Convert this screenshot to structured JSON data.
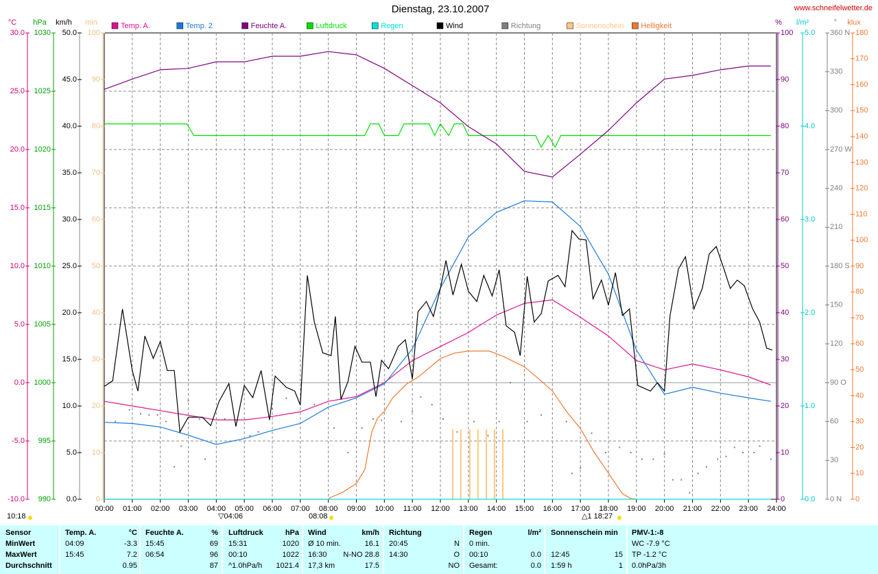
{
  "chart_data": {
    "type": "line",
    "title": "Dienstag, 23.10.2007",
    "source": "www.schneifelwetter.de",
    "grid": true,
    "xlim": [
      0,
      24
    ],
    "xticks": [
      {
        "value": 0,
        "label": "00:00"
      },
      {
        "value": 1,
        "label": "01:00"
      },
      {
        "value": 2,
        "label": "02:00"
      },
      {
        "value": 3,
        "label": "03:00"
      },
      {
        "value": 4,
        "label": "04:00"
      },
      {
        "value": 5,
        "label": "05:00"
      },
      {
        "value": 6,
        "label": "06:00"
      },
      {
        "value": 7,
        "label": "07:00"
      },
      {
        "value": 8,
        "label": "08:00"
      },
      {
        "value": 9,
        "label": "09:00"
      },
      {
        "value": 10,
        "label": "10:00"
      },
      {
        "value": 11,
        "label": "11:00"
      },
      {
        "value": 12,
        "label": "12:00"
      },
      {
        "value": 13,
        "label": "13:00"
      },
      {
        "value": 14,
        "label": "14:00"
      },
      {
        "value": 15,
        "label": "15:00"
      },
      {
        "value": 16,
        "label": "16:00"
      },
      {
        "value": 17,
        "label": "17:00"
      },
      {
        "value": 18,
        "label": "18:00"
      },
      {
        "value": 19,
        "label": "19:00"
      },
      {
        "value": 20,
        "label": "20:00"
      },
      {
        "value": 21,
        "label": "21:00"
      },
      {
        "value": 22,
        "label": "22:00"
      },
      {
        "value": 23,
        "label": "23:00"
      },
      {
        "value": 24,
        "label": "24:00"
      }
    ],
    "axes": [
      {
        "unit": "°C",
        "color": "#d0007a",
        "lim": [
          -10,
          30
        ],
        "ticks": [
          {
            "value": 30,
            "label": "30.0"
          },
          {
            "value": 25,
            "label": "25.0"
          },
          {
            "value": 20,
            "label": "20.0"
          },
          {
            "value": 15,
            "label": "15.0"
          },
          {
            "value": 10,
            "label": "10.0"
          },
          {
            "value": 5,
            "label": "5.0"
          },
          {
            "value": 0,
            "label": "0.0"
          },
          {
            "value": -5,
            "label": "-5.0"
          },
          {
            "value": -10,
            "label": "-10.0"
          }
        ]
      },
      {
        "unit": "hPa",
        "color": "#00a000",
        "lim": [
          990,
          1030
        ],
        "ticks": [
          1030,
          1025,
          1020,
          1015,
          1010,
          1005,
          1000,
          995,
          990
        ]
      },
      {
        "unit": "km/h",
        "color": "#000000",
        "lim": [
          0,
          50
        ],
        "ticks": [
          {
            "value": 50,
            "label": "50.0"
          },
          {
            "value": 45,
            "label": "45.0"
          },
          {
            "value": 40,
            "label": "40.0"
          },
          {
            "value": 35,
            "label": "35.0"
          },
          {
            "value": 30,
            "label": "30.0"
          },
          {
            "value": 25,
            "label": "25.0"
          },
          {
            "value": 20,
            "label": "20.0"
          },
          {
            "value": 15,
            "label": "15.0"
          },
          {
            "value": 10,
            "label": "10.0"
          },
          {
            "value": 5,
            "label": "5.0"
          },
          {
            "value": 0,
            "label": "0.0"
          }
        ]
      },
      {
        "unit": "min",
        "color": "#f0c080",
        "lim": [
          0,
          100
        ],
        "ticks": [
          100,
          90,
          80,
          70,
          60,
          50,
          40,
          30,
          20,
          10,
          0
        ]
      },
      {
        "unit": "%",
        "color": "#800080",
        "lim": [
          0,
          100
        ],
        "ticks": [
          100,
          90,
          80,
          70,
          60,
          50,
          40,
          30,
          20,
          10,
          0
        ]
      },
      {
        "unit": "l/m²",
        "color": "#00c8c8",
        "lim": [
          0,
          5
        ],
        "ticks": [
          {
            "value": 5,
            "label": "5.0"
          },
          {
            "value": 4,
            "label": "4.0"
          },
          {
            "value": 3,
            "label": "3.0"
          },
          {
            "value": 2,
            "label": "2.0"
          },
          {
            "value": 1,
            "label": "1.0"
          },
          {
            "value": 0,
            "label": "0.0"
          }
        ]
      },
      {
        "unit": "°",
        "color": "#808080",
        "lim": [
          0,
          360
        ],
        "ticks": [
          {
            "value": 360,
            "label": "360 N"
          },
          330,
          300,
          {
            "value": 270,
            "label": "270 W"
          },
          240,
          210,
          {
            "value": 180,
            "label": "180 S"
          },
          150,
          120,
          {
            "value": 90,
            "label": "90 O"
          },
          60,
          30,
          {
            "value": 0,
            "label": "0 N"
          }
        ]
      },
      {
        "unit": "klux",
        "color": "#f07830",
        "lim": [
          0,
          180
        ],
        "ticks": [
          180,
          170,
          160,
          150,
          140,
          130,
          120,
          110,
          100,
          90,
          80,
          70,
          60,
          50,
          40,
          30,
          20,
          10,
          0
        ]
      }
    ],
    "series": [
      {
        "name": "Temp. A.",
        "color": "#e0108f",
        "axis": 0,
        "type": "line",
        "x": [
          0,
          1,
          2,
          3,
          4,
          5,
          6,
          7,
          8,
          9,
          10,
          11,
          12,
          13,
          14,
          15,
          16,
          17,
          18,
          19,
          20,
          21,
          22,
          23,
          23.8
        ],
        "values": [
          -1.6,
          -2.0,
          -2.4,
          -2.8,
          -3.2,
          -3.2,
          -2.9,
          -2.5,
          -1.6,
          -1.2,
          0.0,
          1.9,
          3.1,
          4.3,
          5.8,
          6.8,
          7.1,
          5.6,
          4.0,
          1.9,
          1.1,
          1.6,
          1.1,
          0.5,
          -0.2
        ]
      },
      {
        "name": "Temp. 2",
        "color": "#1a7ad9",
        "axis": 0,
        "type": "line",
        "x": [
          0,
          1,
          2,
          3,
          4,
          5,
          6,
          7,
          8,
          9,
          10,
          11,
          12,
          13,
          14,
          15,
          16,
          17,
          18,
          19,
          20,
          21,
          22,
          23,
          23.8
        ],
        "values": [
          -3.4,
          -3.5,
          -3.8,
          -4.5,
          -5.3,
          -4.8,
          -4.1,
          -3.5,
          -2.1,
          -1.3,
          -0.1,
          2.9,
          8.1,
          12.5,
          14.6,
          15.6,
          15.5,
          13.4,
          9.3,
          2.8,
          -1.0,
          -0.4,
          -0.9,
          -1.3,
          -1.6
        ]
      },
      {
        "name": "Feuchte A.",
        "color": "#800080",
        "axis": 4,
        "type": "line",
        "x": [
          0,
          1,
          2,
          3,
          4,
          5,
          6,
          7,
          8,
          9,
          10,
          11,
          12,
          13,
          14,
          15,
          16,
          17,
          18,
          19,
          20,
          21,
          22,
          23,
          23.8
        ],
        "values": [
          87.9,
          90.1,
          92.1,
          92.4,
          93.8,
          93.8,
          95,
          95,
          96,
          95.3,
          92.4,
          88.7,
          85,
          79.9,
          76.2,
          70.3,
          69.1,
          74,
          79.1,
          85,
          90.1,
          90.9,
          92.1,
          92.9,
          92.9
        ]
      },
      {
        "name": "Luftdruck",
        "color": "#00e000",
        "axis": 1,
        "type": "line",
        "x": [
          0,
          2.95,
          3.2,
          9.3,
          9.5,
          9.8,
          10.0,
          10.5,
          10.7,
          11.6,
          11.8,
          12.0,
          12.3,
          12.5,
          12.8,
          13.0,
          15.4,
          15.6,
          15.85,
          16.1,
          16.3,
          23.8
        ],
        "values": [
          1022.2,
          1022.2,
          1021.2,
          1021.2,
          1022.2,
          1022.2,
          1021.2,
          1021.2,
          1022.2,
          1022.2,
          1021.2,
          1022.2,
          1021.2,
          1022.2,
          1022.2,
          1021.2,
          1021.2,
          1020.2,
          1021.2,
          1020.2,
          1021.2,
          1021.2
        ]
      },
      {
        "name": "Regen",
        "color": "#00e0e0",
        "axis": 5,
        "type": "line",
        "x": [
          0,
          23.8
        ],
        "values": [
          0,
          0
        ]
      },
      {
        "name": "Wind",
        "color": "#000000",
        "axis": 2,
        "type": "line",
        "x": [
          0,
          0.3,
          0.65,
          1.0,
          1.2,
          1.45,
          1.75,
          2.0,
          2.25,
          2.5,
          2.7,
          3.0,
          3.5,
          3.8,
          4.1,
          4.45,
          4.7,
          5.0,
          5.3,
          5.6,
          5.9,
          6.1,
          6.5,
          6.8,
          7.0,
          7.25,
          7.5,
          7.8,
          8.1,
          8.25,
          8.45,
          8.7,
          8.95,
          9.2,
          9.5,
          9.7,
          9.9,
          10.15,
          10.5,
          10.75,
          11.0,
          11.2,
          11.5,
          11.75,
          12.0,
          12.2,
          12.45,
          12.75,
          13.0,
          13.3,
          13.55,
          13.85,
          14.1,
          14.35,
          14.65,
          14.85,
          15.1,
          15.35,
          15.6,
          15.85,
          16.2,
          16.45,
          16.7,
          16.95,
          17.2,
          17.45,
          17.75,
          18.0,
          18.25,
          18.5,
          18.75,
          19.05,
          19.5,
          19.75,
          20.0,
          20.2,
          20.5,
          20.75,
          21.05,
          21.35,
          21.6,
          21.85,
          22.1,
          22.35,
          22.6,
          22.85,
          23.15,
          23.4,
          23.65,
          23.85
        ],
        "values": [
          12.1,
          12.7,
          20.4,
          13.8,
          11.6,
          17.5,
          15.1,
          16.9,
          13.8,
          13.8,
          7.2,
          8.8,
          8.8,
          7.9,
          10.5,
          12.4,
          7.8,
          12.2,
          10.9,
          13.8,
          8.5,
          13.2,
          12.0,
          11.6,
          10.1,
          24.0,
          19.0,
          15.7,
          15.4,
          19.6,
          10.7,
          12.6,
          16.4,
          14.7,
          14.7,
          11.0,
          14.9,
          14.0,
          16.4,
          17.1,
          12.9,
          20.1,
          21.2,
          19.6,
          22.6,
          25.6,
          21.9,
          25.2,
          22.3,
          21.2,
          24.0,
          21.8,
          24.6,
          18.6,
          17.9,
          15.4,
          23.9,
          19.0,
          19.9,
          23.4,
          24.0,
          22.8,
          28.8,
          27.9,
          27.8,
          21.5,
          23.5,
          20.8,
          24.3,
          19.7,
          20.4,
          12.2,
          11.6,
          12.5,
          11.6,
          19.7,
          24.7,
          26.0,
          20.4,
          22.6,
          26.3,
          27.1,
          24.9,
          22.6,
          23.5,
          22.9,
          20.4,
          19.0,
          16.2,
          16.0
        ]
      },
      {
        "name": "Richtung",
        "color": "#808080",
        "axis": 6,
        "type": "dots",
        "x": [
          0.4,
          0.9,
          1.3,
          1.6,
          1.9,
          2.2,
          2.5,
          2.75,
          3.0,
          3.4,
          3.6,
          4.3,
          5.2,
          5.5,
          6.0,
          6.5,
          7.5,
          8.2,
          8.7,
          9.2,
          9.6,
          9.9,
          10.6,
          11.0,
          11.3,
          11.7,
          12.1,
          12.6,
          13.2,
          13.7,
          14.1,
          14.5,
          15.1,
          15.6,
          16.5,
          16.7,
          17.0,
          17.4,
          17.9,
          18.4,
          18.8,
          19.2,
          19.6,
          20.0,
          20.3,
          20.6,
          20.9,
          21.2,
          21.5,
          21.9,
          22.2,
          22.5,
          22.8,
          23.2,
          23.4,
          23.8
        ],
        "values": [
          60,
          69,
          66,
          65,
          65,
          60,
          25,
          41,
          76,
          62,
          31,
          62,
          49,
          52,
          70,
          78,
          73,
          55,
          36,
          55,
          62,
          61,
          60,
          68,
          79,
          73,
          62,
          52,
          60,
          49,
          60,
          90,
          60,
          65,
          60,
          20,
          24,
          51,
          36,
          40,
          36,
          31,
          31,
          35,
          15,
          15,
          5,
          20,
          25,
          31,
          33,
          40,
          36,
          36,
          41,
          31
        ]
      },
      {
        "name": "Sonnenschein",
        "color": "#ffc880",
        "axis": 3,
        "type": "bar",
        "x": [
          12.44,
          12.73,
          13.05,
          13.34,
          13.64,
          13.93,
          14.23
        ],
        "values": [
          15,
          15,
          15,
          15,
          15,
          15,
          15
        ]
      },
      {
        "name": "Helligkeit",
        "color": "#f07830",
        "axis": 7,
        "type": "line",
        "x": [
          0,
          8.0,
          8.1,
          8.5,
          9.0,
          9.3,
          9.55,
          9.75,
          10.0,
          10.3,
          10.8,
          11.2,
          11.5,
          12.0,
          12.5,
          13.0,
          13.75,
          14.25,
          15.0,
          15.5,
          16.0,
          16.5,
          17.0,
          17.5,
          18.0,
          18.5,
          18.8,
          19.0
        ],
        "values": [
          0,
          0,
          0.8,
          2.6,
          6.1,
          11.4,
          25.9,
          31.2,
          33.9,
          39.2,
          44.5,
          47.1,
          49.8,
          54.3,
          56.4,
          57.2,
          57.2,
          55.1,
          51.1,
          46.6,
          41.8,
          33.9,
          27.3,
          18.0,
          10.1,
          2.1,
          0.3,
          0
        ]
      }
    ],
    "annotations": [
      "10:18",
      "▽04:06",
      "08:08",
      "△1  18:27"
    ]
  },
  "table": {
    "header": [
      [
        "Sensor"
      ],
      [
        "Temp. A.",
        "°C"
      ],
      [
        "Feuchte A.",
        "%"
      ],
      [
        "Luftdruck",
        "hPa"
      ],
      [
        "Wind",
        "km/h"
      ],
      [
        "Richtung"
      ],
      [
        "Regen",
        "l/m²"
      ],
      [
        "Sonnenschein min"
      ],
      [
        "PMV-1:-8"
      ]
    ],
    "rows": [
      {
        "label": "MinWert",
        "cells": [
          [
            "04:09",
            "-3.3"
          ],
          [
            "15:45",
            "69"
          ],
          [
            "15:31",
            "1020"
          ],
          [
            "Ø 10 min.",
            "16.1"
          ],
          [
            "20:45",
            "N"
          ],
          [
            "0 min."
          ],
          [],
          [
            "WC -7.9 °C"
          ]
        ]
      },
      {
        "label": "MaxWert",
        "cells": [
          [
            "15:45",
            "7.2"
          ],
          [
            "06:54",
            "96"
          ],
          [
            "00:10",
            "1022"
          ],
          [
            "16:30",
            "N-NO 28.8"
          ],
          [
            "14:30",
            "O"
          ],
          [
            "00:10",
            "0.0"
          ],
          [
            "12:45",
            "15"
          ],
          [
            "TP -1.2 °C"
          ]
        ]
      },
      {
        "label": "Durchschnitt",
        "cells": [
          [
            "",
            "0.95"
          ],
          [
            "",
            "87"
          ],
          [
            "^1.0hPa/h",
            "1021.4"
          ],
          [
            "17,3 km",
            "17.5"
          ],
          [
            "",
            "NO"
          ],
          [
            "Gesamt:",
            "0.0"
          ],
          [
            "1:59 h",
            "1"
          ],
          [
            "0.0hPa/3h"
          ]
        ]
      }
    ]
  }
}
